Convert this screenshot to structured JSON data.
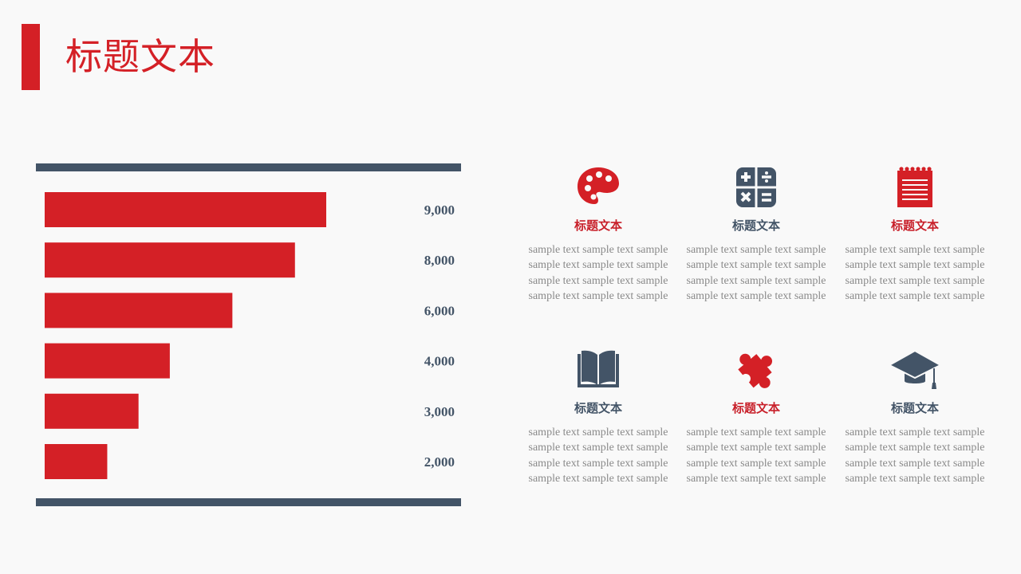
{
  "title": "标题文本",
  "colors": {
    "accent": "#d42026",
    "navy": "#435467",
    "text_gray": "#8a8a8a",
    "background": "#f9f9f9"
  },
  "chart_data": {
    "type": "bar",
    "orientation": "horizontal",
    "values": [
      9000,
      8000,
      6000,
      4000,
      3000,
      2000
    ],
    "value_labels": [
      "9,000",
      "8,000",
      "6,000",
      "4,000",
      "3,000",
      "2,000"
    ],
    "xlim": [
      0,
      9000
    ],
    "bar_color": "#d42026",
    "grid": false
  },
  "cards": [
    {
      "icon": "palette-icon",
      "title": "标题文本",
      "color": "red",
      "text": [
        "sample text sample text sample",
        "sample text sample text sample",
        "sample text sample text sample",
        "sample text sample text sample"
      ]
    },
    {
      "icon": "calculator-icon",
      "title": "标题文本",
      "color": "navy",
      "text": [
        "sample text sample text sample",
        "sample text sample text sample",
        "sample text sample text sample",
        "sample text sample text sample"
      ]
    },
    {
      "icon": "notepad-icon",
      "title": "标题文本",
      "color": "red",
      "text": [
        "sample text sample text sample",
        "sample text sample text sample",
        "sample text sample text sample",
        "sample text sample text sample"
      ]
    },
    {
      "icon": "book-icon",
      "title": "标题文本",
      "color": "navy",
      "text": [
        "sample text sample text sample",
        "sample text sample text sample",
        "sample text sample text sample",
        "sample text sample text sample"
      ]
    },
    {
      "icon": "puzzle-icon",
      "title": "标题文本",
      "color": "red",
      "text": [
        "sample text sample text sample",
        "sample text sample text sample",
        "sample text sample text sample",
        "sample text sample text sample"
      ]
    },
    {
      "icon": "graduation-cap-icon",
      "title": "标题文本",
      "color": "navy",
      "text": [
        "sample text sample text sample",
        "sample text sample text sample",
        "sample text sample text sample",
        "sample text sample text sample"
      ]
    }
  ]
}
